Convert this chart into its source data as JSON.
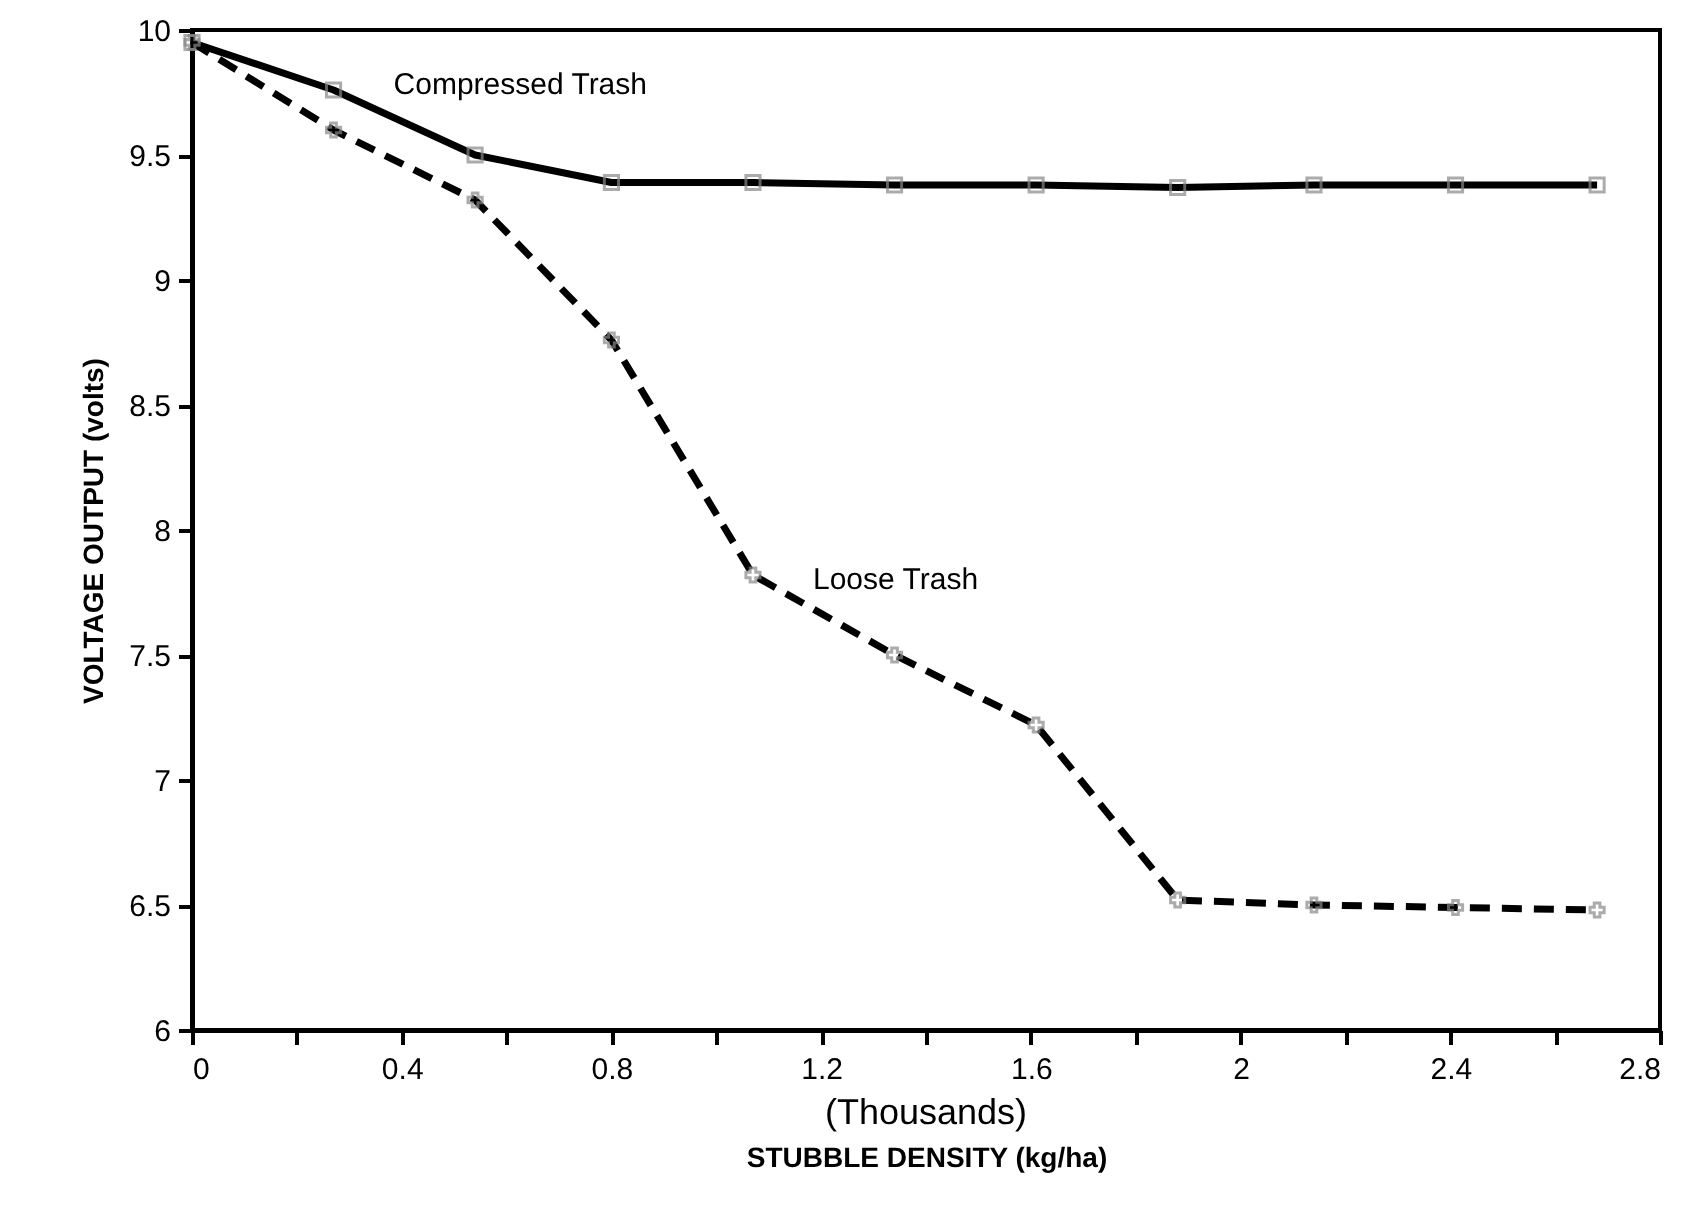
{
  "chart_data": {
    "type": "line",
    "xlabel": "STUBBLE DENSITY (kg/ha)",
    "ylabel": "VOLTAGE OUTPUT (volts)",
    "annotations": [
      "(Thousands)"
    ],
    "x": [
      0,
      0.27,
      0.54,
      0.8,
      1.07,
      1.34,
      1.61,
      1.88,
      2.14,
      2.41,
      2.68
    ],
    "series": [
      {
        "name": "Compressed Trash",
        "color": "#000000",
        "marker": "square",
        "line_style": "solid",
        "values": [
          9.95,
          9.76,
          9.5,
          9.39,
          9.39,
          9.38,
          9.38,
          9.37,
          9.38,
          9.38,
          9.38
        ]
      },
      {
        "name": "Loose Trash",
        "color": "#000000",
        "marker": "cross",
        "line_style": "dashed",
        "values": [
          9.95,
          9.6,
          9.32,
          8.76,
          7.82,
          7.5,
          7.22,
          6.52,
          6.5,
          6.49,
          6.48
        ]
      }
    ],
    "xlim": [
      0,
      2.8
    ],
    "ylim": [
      6,
      10
    ],
    "xticks": [
      0,
      {
        "value": 0.2,
        "label": null
      },
      0.4,
      {
        "value": 0.6,
        "label": null
      },
      0.8,
      {
        "value": 1.0,
        "label": null
      },
      1.2,
      {
        "value": 1.4,
        "label": null
      },
      1.6,
      {
        "value": 1.8,
        "label": null
      },
      2,
      {
        "value": 2.2,
        "label": null
      },
      2.4,
      {
        "value": 2.6,
        "label": null
      },
      2.8
    ],
    "yticks": [
      6,
      6.5,
      7,
      7.5,
      8,
      8.5,
      9,
      9.5,
      10
    ],
    "grid": false,
    "legend": false
  }
}
